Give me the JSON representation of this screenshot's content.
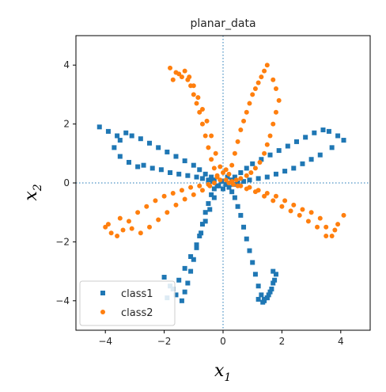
{
  "chart_data": {
    "type": "scatter",
    "title": "planar_data",
    "xlabel": "x",
    "xlabel_subscript": "1",
    "ylabel": "x",
    "ylabel_subscript": "2",
    "xlim": [
      -5,
      5
    ],
    "ylim": [
      -5,
      5
    ],
    "xticks": [
      -4,
      -2,
      0,
      2,
      4
    ],
    "yticks": [
      -4,
      -2,
      0,
      2,
      4
    ],
    "xtick_labels": [
      "−4",
      "−2",
      "0",
      "2",
      "4"
    ],
    "ytick_labels": [
      "−4",
      "−2",
      "0",
      "2",
      "4"
    ],
    "grid": false,
    "reference_lines": "dotted lines at x=0 and y=0",
    "legend_position": "lower-left",
    "series": [
      {
        "name": "class1",
        "color": "#1f77b4",
        "marker": "square",
        "x": [
          -4.2,
          -3.9,
          -3.6,
          -3.5,
          -3.3,
          -3.1,
          -2.8,
          -2.5,
          -2.2,
          -1.9,
          -1.6,
          -1.3,
          -1.0,
          -0.8,
          -0.6,
          -0.4,
          -0.3,
          -3.7,
          -3.5,
          -3.2,
          -2.9,
          -2.7,
          -2.4,
          -2.1,
          -1.8,
          -1.5,
          -1.2,
          -0.9,
          -0.7,
          -0.5,
          -0.35,
          4.1,
          3.9,
          3.6,
          3.4,
          3.1,
          2.8,
          2.5,
          2.2,
          1.9,
          1.6,
          1.3,
          1.0,
          0.8,
          0.6,
          0.4,
          0.3,
          3.7,
          3.3,
          3.0,
          2.7,
          2.4,
          2.1,
          1.8,
          1.5,
          1.2,
          0.9,
          0.7,
          0.5,
          0.35,
          -2.0,
          -1.8,
          -1.6,
          -1.4,
          -1.3,
          -1.2,
          -1.1,
          -1.0,
          -0.9,
          -0.8,
          -0.7,
          -0.6,
          -0.5,
          -0.4,
          -0.3,
          -0.2,
          -1.9,
          -1.7,
          -1.5,
          -1.3,
          -1.1,
          -0.9,
          -0.75,
          -0.6,
          -0.45,
          -0.3,
          1.8,
          1.7,
          1.6,
          1.5,
          1.4,
          1.3,
          1.2,
          1.1,
          1.0,
          0.9,
          0.8,
          0.7,
          0.6,
          0.5,
          0.4,
          0.3,
          0.2,
          0.1,
          1.2,
          1.35,
          1.5,
          1.65,
          1.75,
          1.7,
          1.55,
          1.4,
          -0.15,
          0.0,
          0.1,
          -0.05,
          0.15
        ],
        "y": [
          1.9,
          1.75,
          1.6,
          1.45,
          1.7,
          1.6,
          1.5,
          1.35,
          1.2,
          1.05,
          0.9,
          0.75,
          0.6,
          0.45,
          0.3,
          0.2,
          0.1,
          1.2,
          0.9,
          0.7,
          0.55,
          0.6,
          0.5,
          0.45,
          0.35,
          0.3,
          0.25,
          0.2,
          0.15,
          0.1,
          0.05,
          1.45,
          1.6,
          1.75,
          1.8,
          1.7,
          1.55,
          1.4,
          1.25,
          1.1,
          0.95,
          0.8,
          0.65,
          0.5,
          0.35,
          0.2,
          0.1,
          1.2,
          0.95,
          0.8,
          0.65,
          0.5,
          0.4,
          0.3,
          0.2,
          0.15,
          0.1,
          0.05,
          0.0,
          -0.05,
          -3.2,
          -3.5,
          -3.8,
          -4.0,
          -3.7,
          -3.4,
          -3.0,
          -2.6,
          -2.2,
          -1.8,
          -1.4,
          -1.0,
          -0.7,
          -0.4,
          -0.2,
          -0.1,
          -3.9,
          -3.6,
          -3.3,
          -2.9,
          -2.5,
          -2.1,
          -1.7,
          -1.3,
          -0.9,
          -0.5,
          -3.1,
          -3.4,
          -3.7,
          -3.9,
          -4.0,
          -3.8,
          -3.5,
          -3.1,
          -2.7,
          -2.3,
          -1.9,
          -1.5,
          -1.1,
          -0.8,
          -0.5,
          -0.3,
          -0.15,
          -0.05,
          -3.95,
          -4.05,
          -3.9,
          -3.6,
          -3.3,
          -3.0,
          -3.8,
          -3.95,
          -0.1,
          -0.2,
          -0.05,
          0.05,
          0.2
        ]
      },
      {
        "name": "class2",
        "color": "#ff7f0e",
        "marker": "circle",
        "x": [
          -1.8,
          -1.6,
          -1.4,
          -1.2,
          -1.1,
          -1.0,
          -0.9,
          -0.8,
          -0.7,
          -0.6,
          -0.5,
          -0.4,
          -0.3,
          -0.2,
          -0.1,
          -1.7,
          -1.5,
          -1.3,
          -1.15,
          -1.0,
          -0.85,
          -0.7,
          -0.55,
          -0.4,
          -0.25,
          1.5,
          1.4,
          1.3,
          1.2,
          1.1,
          1.0,
          0.9,
          0.8,
          0.7,
          0.6,
          0.5,
          0.4,
          0.3,
          0.2,
          0.1,
          1.7,
          1.8,
          1.9,
          1.8,
          1.7,
          1.6,
          1.5,
          1.4,
          1.25,
          1.1,
          0.95,
          0.8,
          0.6,
          0.45,
          0.3,
          -4.0,
          -3.8,
          -3.6,
          -3.4,
          -3.2,
          -2.9,
          -2.6,
          -2.3,
          -2.0,
          -1.7,
          -1.4,
          -1.1,
          -0.8,
          -0.5,
          -0.3,
          -3.9,
          -3.5,
          -3.1,
          -2.8,
          -2.5,
          -2.2,
          -1.9,
          -1.6,
          -1.3,
          -1.0,
          -0.7,
          -0.45,
          4.1,
          3.9,
          3.7,
          3.5,
          3.3,
          3.0,
          2.7,
          2.4,
          2.1,
          1.8,
          1.5,
          1.2,
          0.9,
          0.6,
          0.35,
          3.8,
          3.5,
          3.2,
          2.9,
          2.6,
          2.3,
          2.0,
          1.7,
          1.4,
          1.1,
          0.8,
          0.5,
          -0.2,
          0.0,
          0.1,
          -0.1,
          0.2
        ],
        "y": [
          3.9,
          3.75,
          3.6,
          3.5,
          3.3,
          3.0,
          2.7,
          2.4,
          2.0,
          1.6,
          1.2,
          0.8,
          0.5,
          0.25,
          0.1,
          3.5,
          3.7,
          3.8,
          3.6,
          3.3,
          2.9,
          2.5,
          2.1,
          1.6,
          1.0,
          4.0,
          3.8,
          3.6,
          3.4,
          3.2,
          3.0,
          2.7,
          2.4,
          2.1,
          1.8,
          1.4,
          1.0,
          0.6,
          0.3,
          0.1,
          3.5,
          3.2,
          2.8,
          2.4,
          2.0,
          1.6,
          1.3,
          1.0,
          0.7,
          0.5,
          0.35,
          0.25,
          0.15,
          0.1,
          0.05,
          -1.5,
          -1.7,
          -1.8,
          -1.6,
          -1.3,
          -1.0,
          -0.8,
          -0.6,
          -0.45,
          -0.35,
          -0.25,
          -0.15,
          -0.1,
          -0.05,
          0.0,
          -1.4,
          -1.2,
          -1.55,
          -1.7,
          -1.5,
          -1.25,
          -1.0,
          -0.75,
          -0.55,
          -0.4,
          -0.25,
          -0.1,
          -1.1,
          -1.4,
          -1.8,
          -1.5,
          -1.2,
          -1.0,
          -0.9,
          -0.75,
          -0.6,
          -0.45,
          -0.35,
          -0.25,
          -0.15,
          -0.1,
          -0.05,
          -1.6,
          -1.8,
          -1.5,
          -1.3,
          -1.1,
          -0.95,
          -0.8,
          -0.6,
          -0.45,
          -0.3,
          -0.2,
          -0.1,
          0.2,
          0.35,
          0.45,
          0.55,
          0.0
        ]
      }
    ]
  }
}
